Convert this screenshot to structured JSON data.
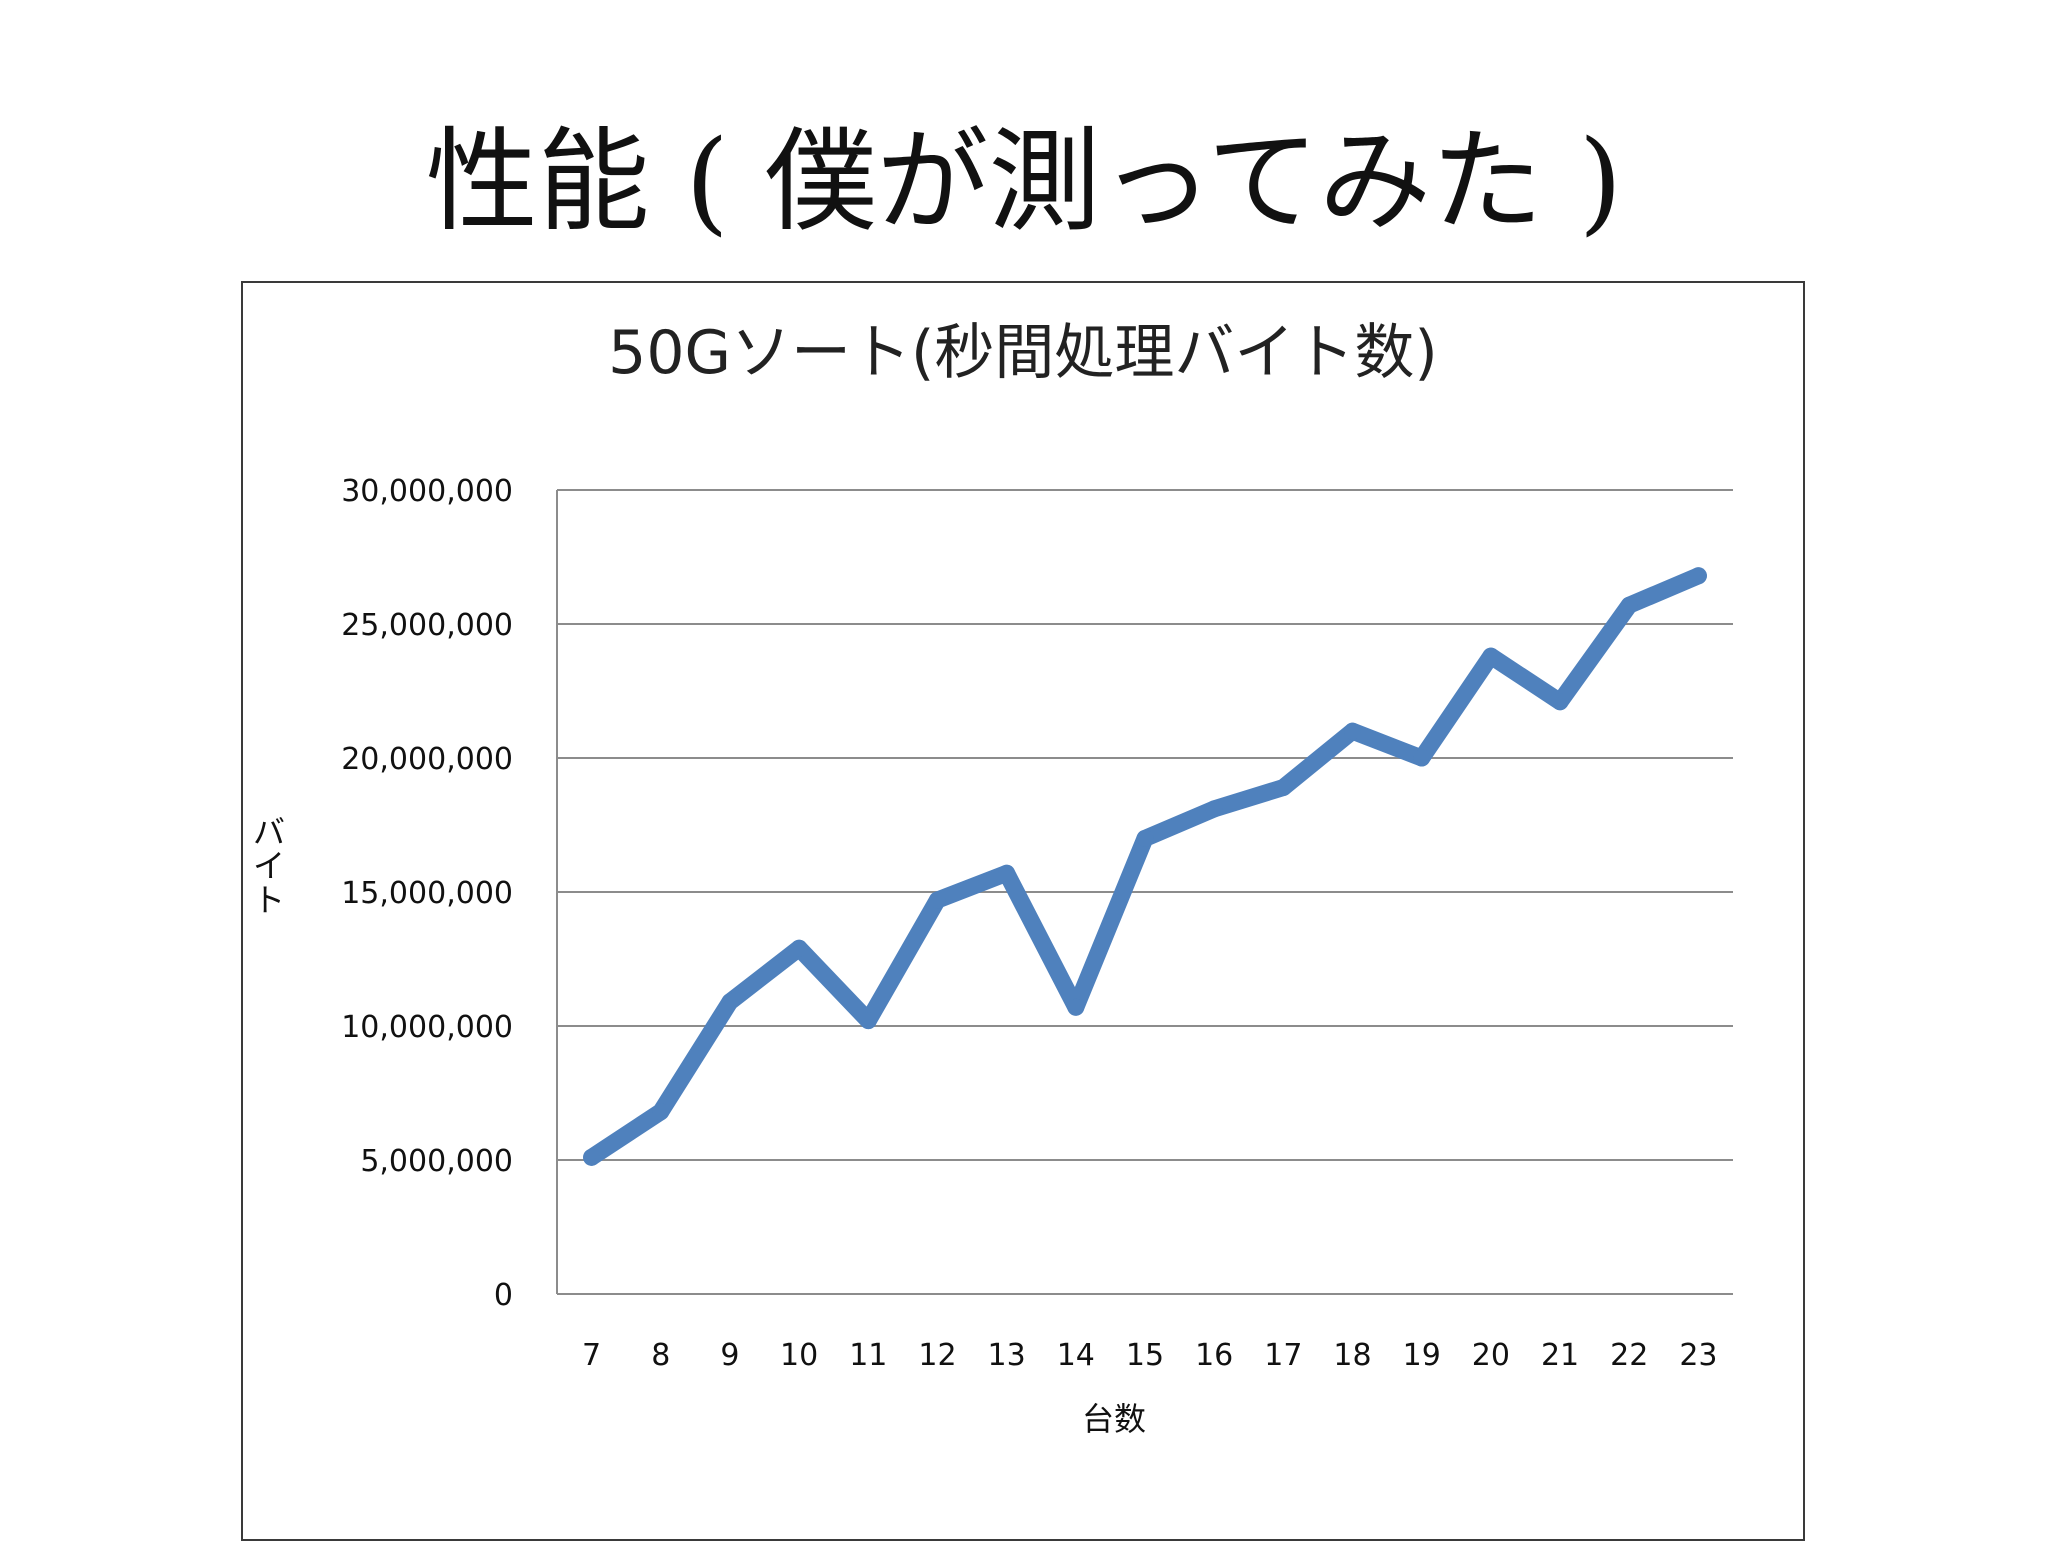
{
  "slide": {
    "title": "性能 ( 僕が測ってみた )"
  },
  "colors": {
    "series_line": "#4f81bd",
    "gridline": "#8c8c8c",
    "frame": "#3a3a3a",
    "text": "#111111"
  },
  "chart_data": {
    "type": "line",
    "title": "50Gソート(秒間処理バイト数)",
    "xlabel": "台数",
    "ylabel": "バイト",
    "ylim": [
      0,
      30000000
    ],
    "yticks": [
      0,
      5000000,
      10000000,
      15000000,
      20000000,
      25000000,
      30000000
    ],
    "ytick_labels": [
      "0",
      "5,000,000",
      "10,000,000",
      "15,000,000",
      "20,000,000",
      "25,000,000",
      "30,000,000"
    ],
    "categories": [
      "7",
      "8",
      "9",
      "10",
      "11",
      "12",
      "13",
      "14",
      "15",
      "16",
      "17",
      "18",
      "19",
      "20",
      "21",
      "22",
      "23"
    ],
    "series": [
      {
        "values": [
          5100000,
          6800000,
          10900000,
          12900000,
          10200000,
          14700000,
          15700000,
          10700000,
          17000000,
          18100000,
          18900000,
          21000000,
          20000000,
          23800000,
          22100000,
          25700000,
          26800000
        ]
      }
    ],
    "grid": true,
    "legend": "none"
  }
}
